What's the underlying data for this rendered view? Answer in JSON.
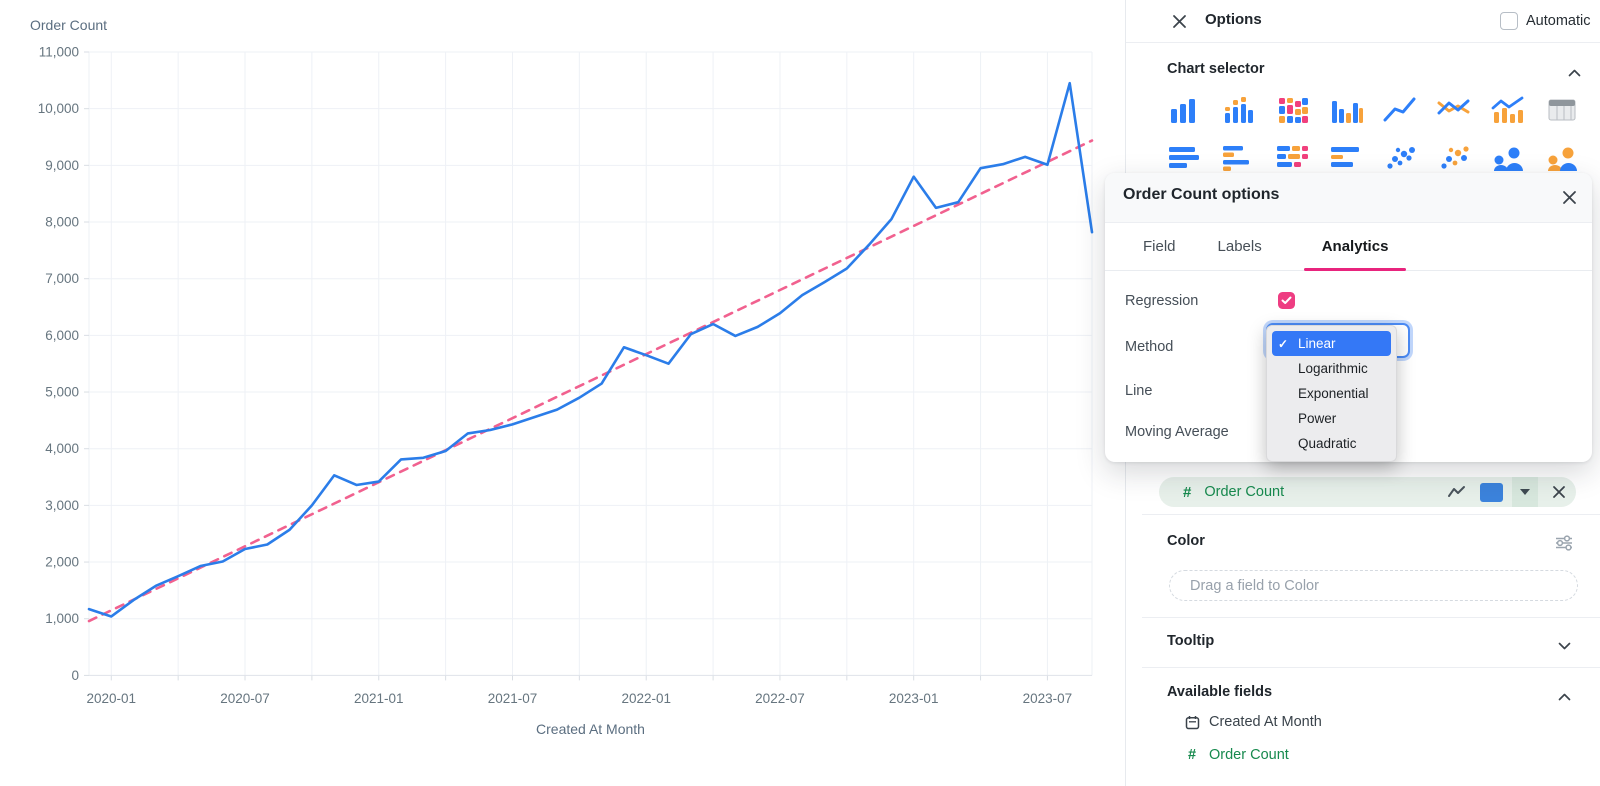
{
  "chart": {
    "title": "Order Count",
    "x_axis_label": "Created At Month",
    "line_color": "#2b7de9",
    "trend_color": "#f1618f"
  },
  "chart_data": {
    "type": "line",
    "title": "Order Count",
    "xlabel": "Created At Month",
    "ylabel": "Order Count",
    "x": [
      "2019-12",
      "2020-01",
      "2020-02",
      "2020-03",
      "2020-04",
      "2020-05",
      "2020-06",
      "2020-07",
      "2020-08",
      "2020-09",
      "2020-10",
      "2020-11",
      "2020-12",
      "2021-01",
      "2021-02",
      "2021-03",
      "2021-04",
      "2021-05",
      "2021-06",
      "2021-07",
      "2021-08",
      "2021-09",
      "2021-10",
      "2021-11",
      "2021-12",
      "2022-01",
      "2022-02",
      "2022-03",
      "2022-04",
      "2022-05",
      "2022-06",
      "2022-07",
      "2022-08",
      "2022-09",
      "2022-10",
      "2022-11",
      "2022-12",
      "2023-01",
      "2023-02",
      "2023-03",
      "2023-04",
      "2023-05",
      "2023-06",
      "2023-07",
      "2023-08",
      "2023-09"
    ],
    "series": [
      {
        "name": "Order Count",
        "values": [
          1170,
          1040,
          1330,
          1580,
          1750,
          1930,
          2010,
          2230,
          2310,
          2570,
          3000,
          3530,
          3360,
          3420,
          3810,
          3840,
          3960,
          4270,
          4330,
          4430,
          4560,
          4690,
          4900,
          5150,
          5790,
          5650,
          5500,
          6020,
          6200,
          5990,
          6150,
          6390,
          6710,
          6940,
          7180,
          7600,
          8050,
          8800,
          8250,
          8350,
          8950,
          9020,
          9150,
          9010,
          10450,
          7820
        ]
      }
    ],
    "ylim": [
      0,
      11000
    ],
    "y_tick_step": 1000,
    "x_tick_labels": [
      "2020-01",
      "2020-07",
      "2021-01",
      "2021-07",
      "2022-01",
      "2022-07",
      "2023-01",
      "2023-07"
    ],
    "grid": true,
    "legend": "none",
    "trend": {
      "type": "linear",
      "style": "dashed",
      "color": "#f1618f"
    }
  },
  "panel": {
    "title": "Options",
    "automatic": {
      "label": "Automatic",
      "checked": false
    },
    "chart_selector": {
      "title": "Chart selector",
      "collapsed": false,
      "icons": [
        "bar-chart-icon",
        "grouped-bar-icon",
        "stacked-grid-icon",
        "column-duo-icon",
        "line-chart-icon",
        "multi-line-icon",
        "combo-chart-icon",
        "table-icon",
        "hbar-icon",
        "hbar-duo-icon",
        "hbar-stacked-icon",
        "hbar-long-icon",
        "scatter-icon",
        "scatter-duo-icon",
        "people-icon",
        "people-duo-icon"
      ]
    },
    "series_pill": {
      "type_icon": "#",
      "label": "Order Count",
      "swatch_color": "#3c83dc"
    },
    "color_section": {
      "title": "Color",
      "placeholder": "Drag a field to Color"
    },
    "tooltip_section": {
      "title": "Tooltip",
      "collapsed": true
    },
    "available_fields": {
      "title": "Available fields",
      "collapsed": false,
      "fields": [
        {
          "icon": "calendar-icon",
          "glyph": "",
          "label": "Created At Month",
          "value_type": "date"
        },
        {
          "icon": "hash-icon",
          "glyph": "#",
          "label": "Order Count",
          "value_type": "number"
        }
      ]
    }
  },
  "popup": {
    "title": "Order Count options",
    "tabs": [
      {
        "label": "Field",
        "active": false
      },
      {
        "label": "Labels",
        "active": false
      },
      {
        "label": "Analytics",
        "active": true
      }
    ],
    "rows": {
      "regression": "Regression",
      "method": "Method",
      "line": "Line",
      "moving_average": "Moving Average"
    },
    "regression_checked": true,
    "method_dropdown": {
      "selected": "Linear",
      "options": [
        "Linear",
        "Logarithmic",
        "Exponential",
        "Power",
        "Quadratic"
      ]
    }
  },
  "colors": {
    "accent_pink": "#ee3d82",
    "tab_underline": "#e8247d",
    "green": "#178a4e",
    "pill_bg": "#e7f0ea",
    "menu_highlight": "#3478f6",
    "swatch_blue": "#3c83dc"
  }
}
